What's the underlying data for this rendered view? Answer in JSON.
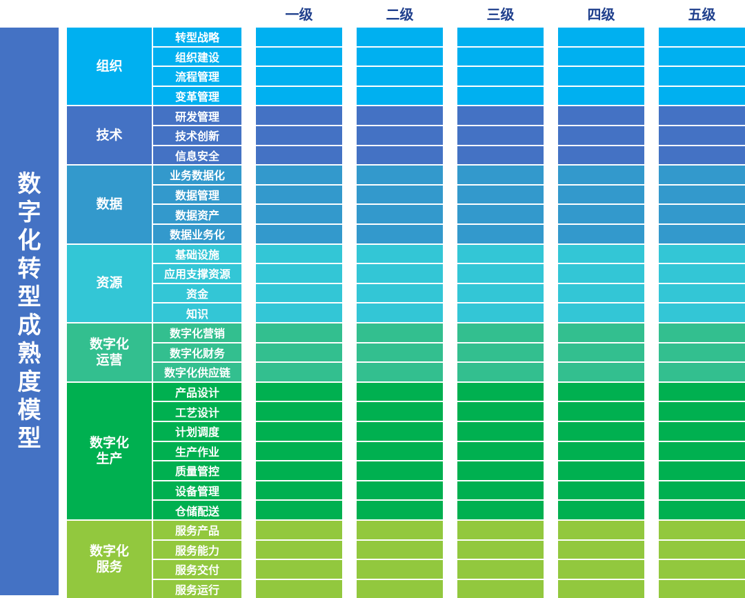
{
  "title": "数字化转型成熟度模型",
  "levels": [
    "一级",
    "二级",
    "三级",
    "四级",
    "五级"
  ],
  "groups": [
    {
      "label": "组织",
      "color": "#00b0f0",
      "items": [
        "转型战略",
        "组织建设",
        "流程管理",
        "变革管理"
      ]
    },
    {
      "label": "技术",
      "color": "#4472c4",
      "items": [
        "研发管理",
        "技术创新",
        "信息安全"
      ]
    },
    {
      "label": "数据",
      "color": "#3399cc",
      "items": [
        "业务数据化",
        "数据管理",
        "数据资产",
        "数据业务化"
      ]
    },
    {
      "label": "资源",
      "color": "#33c6d6",
      "items": [
        "基础设施",
        "应用支撑资源",
        "资金",
        "知识"
      ]
    },
    {
      "label": "数字化运营",
      "color": "#33bf8f",
      "items": [
        "数字化营销",
        "数字化财务",
        "数字化供应链"
      ]
    },
    {
      "label": "数字化生产",
      "color": "#00b050",
      "items": [
        "产品设计",
        "工艺设计",
        "计划调度",
        "生产作业",
        "质量管控",
        "设备管理",
        "仓储配送"
      ]
    },
    {
      "label": "数字化服务",
      "color": "#92c83e",
      "items": [
        "服务产品",
        "服务能力",
        "服务交付",
        "服务运行"
      ]
    }
  ]
}
